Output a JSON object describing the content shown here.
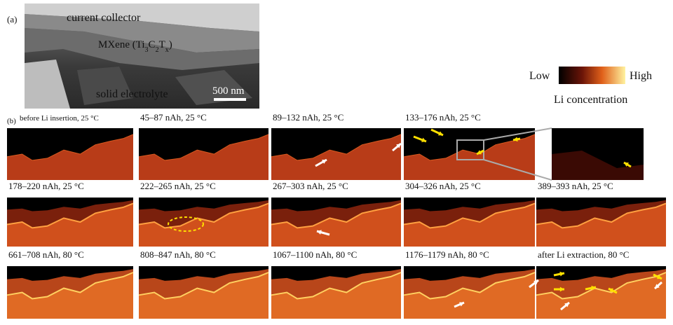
{
  "panel_a": {
    "label": "(a)",
    "current_collector": "current collector",
    "mxene": [
      "MXene (Ti",
      "3",
      "C",
      "2",
      "T",
      "x",
      ")"
    ],
    "solid_electrolyte": "solid electrolyte",
    "scale_bar": "500 nm"
  },
  "colorbar": {
    "low": "Low",
    "high": "High",
    "title": "Li concentration"
  },
  "panel_b": {
    "label": "(b)",
    "frames": [
      "before Li insertion, 25 °C",
      "45–87 nAh, 25 °C",
      "89–132 nAh, 25 °C",
      "133–176 nAh, 25 °C",
      "178–220 nAh, 25 °C",
      "222–265 nAh, 25 °C",
      "267–303 nAh, 25 °C",
      "304–326 nAh, 25 °C",
      "389–393 nAh, 25 °C",
      "661–708 nAh, 80 °C",
      "808–847 nAh, 80 °C",
      "1067–1100 nAh, 80 °C",
      "1176–1179 nAh, 80 °C",
      "after Li extraction, 80 °C"
    ]
  }
}
